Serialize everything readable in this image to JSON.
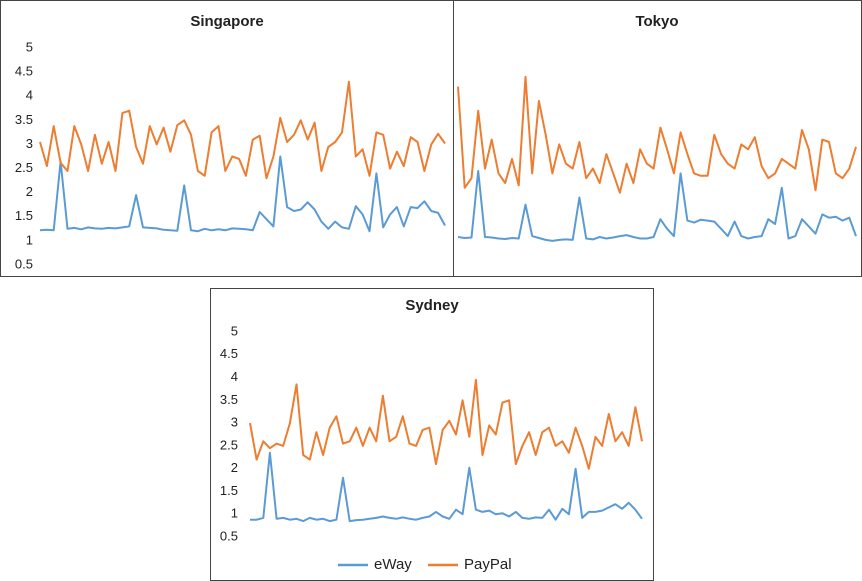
{
  "chart_data": [
    {
      "type": "line",
      "title": "Singapore",
      "ylim": [
        0.5,
        5
      ],
      "yticks": [
        0.5,
        1,
        1.5,
        2,
        2.5,
        3,
        3.5,
        4,
        4.5,
        5
      ],
      "series": [
        {
          "color": "#5b9bd5",
          "values": [
            1.22,
            1.23,
            1.22,
            2.65,
            1.25,
            1.27,
            1.24,
            1.28,
            1.26,
            1.25,
            1.27,
            1.26,
            1.28,
            1.3,
            1.95,
            1.28,
            1.27,
            1.26,
            1.23,
            1.22,
            1.21,
            2.15,
            1.22,
            1.2,
            1.25,
            1.22,
            1.24,
            1.22,
            1.26,
            1.25,
            1.24,
            1.22,
            1.6,
            1.45,
            1.3,
            2.75,
            1.7,
            1.62,
            1.65,
            1.8,
            1.65,
            1.4,
            1.25,
            1.4,
            1.28,
            1.25,
            1.72,
            1.55,
            1.2,
            2.4,
            1.28,
            1.55,
            1.7,
            1.3,
            1.7,
            1.68,
            1.82,
            1.62,
            1.58,
            1.32
          ]
        },
        {
          "color": "#ed7d31",
          "values": [
            3.05,
            2.55,
            3.38,
            2.62,
            2.45,
            3.38,
            3.0,
            2.45,
            3.2,
            2.6,
            3.05,
            2.45,
            3.65,
            3.7,
            2.95,
            2.6,
            3.38,
            3.0,
            3.35,
            2.85,
            3.4,
            3.5,
            3.2,
            2.45,
            2.35,
            3.25,
            3.38,
            2.45,
            2.75,
            2.7,
            2.35,
            3.1,
            3.18,
            2.3,
            2.75,
            3.55,
            3.05,
            3.2,
            3.5,
            3.1,
            3.45,
            2.45,
            2.95,
            3.05,
            3.25,
            4.3,
            2.75,
            2.9,
            2.35,
            3.25,
            3.2,
            2.5,
            2.85,
            2.55,
            3.15,
            3.05,
            2.45,
            3.0,
            3.22,
            3.02
          ]
        }
      ]
    },
    {
      "type": "line",
      "title": "Tokyo",
      "ylim": [
        0.5,
        5
      ],
      "series": [
        {
          "color": "#5b9bd5",
          "values": [
            1.08,
            1.06,
            1.07,
            2.45,
            1.08,
            1.07,
            1.05,
            1.04,
            1.06,
            1.05,
            1.75,
            1.1,
            1.06,
            1.02,
            1.0,
            1.02,
            1.03,
            1.02,
            1.9,
            1.05,
            1.03,
            1.08,
            1.05,
            1.07,
            1.1,
            1.12,
            1.08,
            1.05,
            1.05,
            1.08,
            1.45,
            1.25,
            1.1,
            2.4,
            1.42,
            1.38,
            1.44,
            1.42,
            1.4,
            1.25,
            1.1,
            1.4,
            1.1,
            1.05,
            1.08,
            1.1,
            1.45,
            1.35,
            2.1,
            1.05,
            1.1,
            1.45,
            1.3,
            1.15,
            1.55,
            1.48,
            1.5,
            1.42,
            1.48,
            1.1
          ]
        },
        {
          "color": "#ed7d31",
          "values": [
            4.2,
            2.1,
            2.3,
            3.7,
            2.5,
            3.1,
            2.4,
            2.2,
            2.7,
            2.15,
            4.4,
            2.4,
            3.9,
            3.2,
            2.4,
            3.0,
            2.6,
            2.5,
            3.05,
            2.3,
            2.5,
            2.2,
            2.8,
            2.4,
            2.0,
            2.6,
            2.2,
            2.9,
            2.6,
            2.5,
            3.35,
            2.9,
            2.4,
            3.25,
            2.8,
            2.4,
            2.35,
            2.35,
            3.2,
            2.8,
            2.6,
            2.5,
            3.0,
            2.9,
            3.15,
            2.55,
            2.3,
            2.4,
            2.7,
            2.6,
            2.5,
            3.3,
            2.9,
            2.05,
            3.1,
            3.05,
            2.4,
            2.3,
            2.5,
            2.95
          ]
        }
      ]
    },
    {
      "type": "line",
      "title": "Sydney",
      "ylim": [
        0.5,
        5
      ],
      "yticks": [
        0.5,
        1,
        1.5,
        2,
        2.5,
        3,
        3.5,
        4,
        4.5,
        5
      ],
      "legend": "bottom",
      "series": [
        {
          "name": "eWay",
          "color": "#5b9bd5",
          "values": [
            0.88,
            0.88,
            0.92,
            2.35,
            0.9,
            0.92,
            0.88,
            0.9,
            0.85,
            0.92,
            0.88,
            0.9,
            0.85,
            0.88,
            1.8,
            0.85,
            0.87,
            0.88,
            0.9,
            0.92,
            0.95,
            0.92,
            0.9,
            0.93,
            0.9,
            0.88,
            0.92,
            0.95,
            1.05,
            0.95,
            0.9,
            1.1,
            1.0,
            2.02,
            1.1,
            1.05,
            1.08,
            1.0,
            1.02,
            0.95,
            1.05,
            0.92,
            0.9,
            0.93,
            0.92,
            1.1,
            0.88,
            1.12,
            1.0,
            2.0,
            0.92,
            1.05,
            1.05,
            1.08,
            1.15,
            1.22,
            1.12,
            1.25,
            1.1,
            0.9
          ]
        },
        {
          "name": "PayPal",
          "color": "#ed7d31",
          "values": [
            3.0,
            2.2,
            2.6,
            2.45,
            2.55,
            2.5,
            3.0,
            3.85,
            2.3,
            2.2,
            2.8,
            2.3,
            2.9,
            3.15,
            2.55,
            2.6,
            2.9,
            2.5,
            2.9,
            2.6,
            3.6,
            2.6,
            2.7,
            3.15,
            2.55,
            2.5,
            2.85,
            2.9,
            2.1,
            2.85,
            3.05,
            2.75,
            3.5,
            2.7,
            3.95,
            2.3,
            2.95,
            2.75,
            3.45,
            3.5,
            2.1,
            2.5,
            2.8,
            2.3,
            2.8,
            2.9,
            2.5,
            2.6,
            2.35,
            2.9,
            2.5,
            2.0,
            2.7,
            2.5,
            3.2,
            2.6,
            2.8,
            2.5,
            3.35,
            2.6
          ]
        }
      ]
    }
  ]
}
